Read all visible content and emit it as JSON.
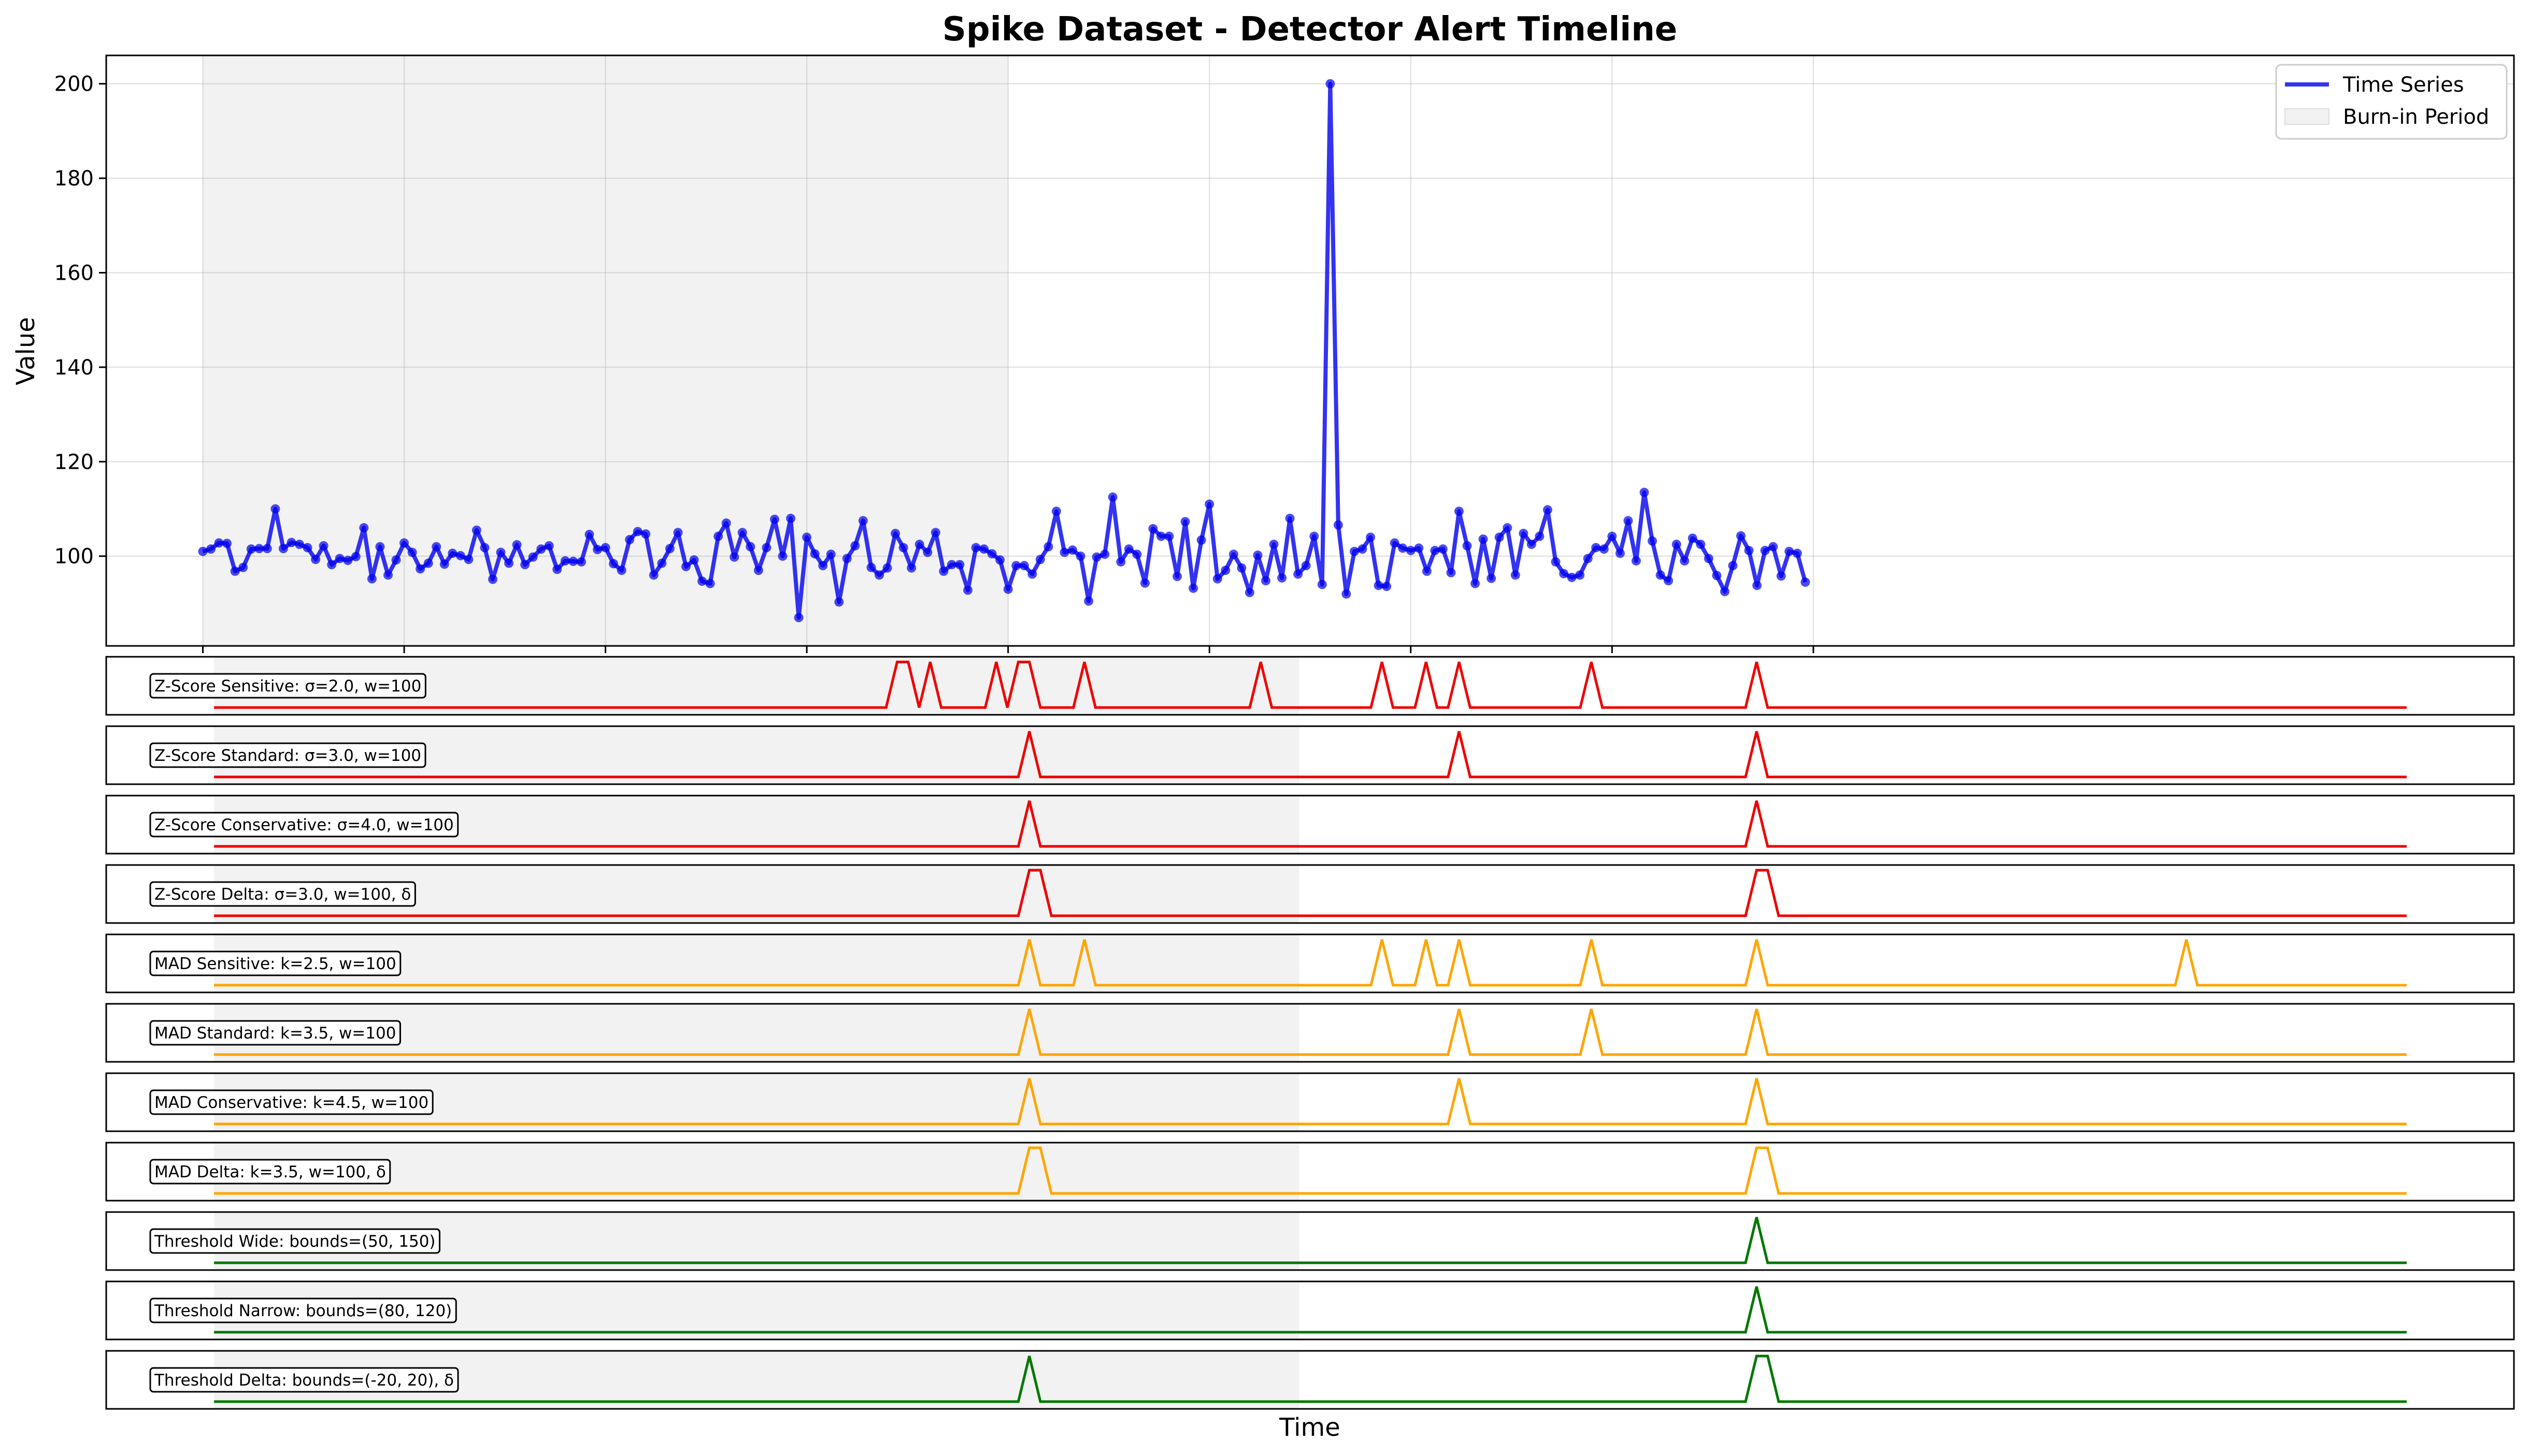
{
  "chart_data": {
    "type": "line",
    "title": "Spike Dataset - Detector Alert Timeline",
    "xlabel": "Time",
    "ylabel": "Value",
    "ylim": [
      81,
      206
    ],
    "xlim": [
      -12,
      287
    ],
    "yticks": [
      100,
      120,
      140,
      160,
      180,
      200
    ],
    "grid": true,
    "legend_position": "top-right",
    "legend": [
      "Time Series",
      "Burn-in Period"
    ],
    "burn_in": [
      0,
      100
    ],
    "series": [
      {
        "name": "Time Series",
        "color": "#0000ee",
        "x_start": 0,
        "values": [
          101.0,
          101.5,
          102.8,
          102.7,
          96.8,
          97.6,
          101.5,
          101.6,
          101.6,
          110.0,
          101.6,
          102.9,
          102.5,
          101.8,
          99.3,
          102.2,
          98.2,
          99.5,
          99.1,
          99.9,
          106.0,
          95.2,
          102.0,
          96.0,
          99.2,
          102.8,
          100.8,
          97.3,
          98.5,
          102.0,
          98.3,
          100.6,
          100.1,
          99.3,
          105.5,
          101.8,
          95.1,
          100.8,
          98.5,
          102.4,
          98.2,
          99.8,
          101.5,
          102.2,
          97.2,
          99.0,
          98.9,
          98.8,
          104.6,
          101.4,
          101.8,
          98.4,
          97.0,
          103.5,
          105.2,
          104.7,
          96.0,
          98.5,
          101.6,
          105.0,
          97.8,
          99.2,
          94.7,
          94.2,
          104.2,
          107.0,
          99.8,
          105.0,
          102.0,
          97.0,
          101.8,
          107.8,
          100.0,
          108.0,
          87.0,
          104.0,
          100.5,
          98.0,
          100.4,
          90.3,
          99.5,
          102.2,
          107.5,
          97.6,
          96.0,
          97.5,
          104.8,
          101.8,
          97.5,
          102.5,
          100.8,
          105.0,
          96.8,
          98.2,
          98.2,
          92.8,
          101.8,
          101.5,
          100.5,
          99.2,
          93.0,
          98.0,
          98.0,
          96.2,
          99.3,
          102.0,
          109.5,
          100.8,
          101.3,
          100.0,
          90.5,
          99.8,
          100.4,
          112.5,
          98.8,
          101.5,
          100.4,
          94.3,
          105.8,
          104.2,
          104.2,
          95.7,
          107.3,
          93.2,
          103.4,
          111.0,
          95.2,
          97.0,
          100.4,
          97.5,
          92.3,
          100.2,
          94.8,
          102.5,
          95.4,
          108.0,
          96.2,
          98.0,
          104.2,
          94.0,
          200.0,
          106.6,
          92.0,
          101.0,
          101.5,
          104.0,
          93.8,
          93.6,
          102.8,
          101.7,
          101.2,
          101.7,
          96.8,
          101.2,
          101.5,
          96.5,
          109.5,
          102.2,
          94.2,
          103.6,
          95.3,
          104.0,
          106.0,
          96.0,
          104.8,
          102.5,
          104.2,
          109.8,
          98.8,
          96.3,
          95.5,
          96.0,
          99.5,
          101.8,
          101.5,
          104.2,
          100.6,
          107.5,
          99.0,
          113.5,
          103.2,
          96.0,
          94.8,
          102.5,
          99.0,
          103.8,
          102.5,
          99.5,
          95.9,
          92.5,
          98.0,
          104.3,
          101.2,
          93.8,
          101.2,
          102.0,
          95.8,
          101.0,
          100.6,
          94.5
        ]
      }
    ],
    "detectors": [
      {
        "label": "Z-Score Sensitive: σ=2.0, w=100",
        "color": "#ee0000",
        "alerts": [
          62,
          63,
          65,
          71,
          73,
          74,
          79,
          95,
          106,
          110,
          113,
          125,
          140
        ]
      },
      {
        "label": "Z-Score Standard: σ=3.0, w=100",
        "color": "#ee0000",
        "alerts": [
          74,
          113,
          140
        ]
      },
      {
        "label": "Z-Score Conservative: σ=4.0, w=100",
        "color": "#ee0000",
        "alerts": [
          74,
          140
        ]
      },
      {
        "label": "Z-Score Delta: σ=3.0, w=100, δ",
        "color": "#ee0000",
        "alerts": [
          74,
          75,
          140,
          141
        ]
      },
      {
        "label": "MAD Sensitive: k=2.5, w=100",
        "color": "#ffa500",
        "alerts": [
          74,
          79,
          106,
          110,
          113,
          125,
          140,
          179
        ]
      },
      {
        "label": "MAD Standard: k=3.5, w=100",
        "color": "#ffa500",
        "alerts": [
          74,
          113,
          125,
          140
        ]
      },
      {
        "label": "MAD Conservative: k=4.5, w=100",
        "color": "#ffa500",
        "alerts": [
          74,
          113,
          140
        ]
      },
      {
        "label": "MAD Delta: k=3.5, w=100, δ",
        "color": "#ffa500",
        "alerts": [
          74,
          75,
          140,
          141
        ]
      },
      {
        "label": "Threshold Wide: bounds=(50, 150)",
        "color": "#007700",
        "alerts": [
          140
        ]
      },
      {
        "label": "Threshold Narrow: bounds=(80, 120)",
        "color": "#007700",
        "alerts": [
          140
        ]
      },
      {
        "label": "Threshold Delta: bounds=(-20, 20), δ",
        "color": "#007700",
        "alerts": [
          74,
          140,
          141
        ]
      }
    ],
    "detector_x_range": [
      0,
      199
    ],
    "detector_burn_in": [
      0,
      98.5
    ]
  }
}
